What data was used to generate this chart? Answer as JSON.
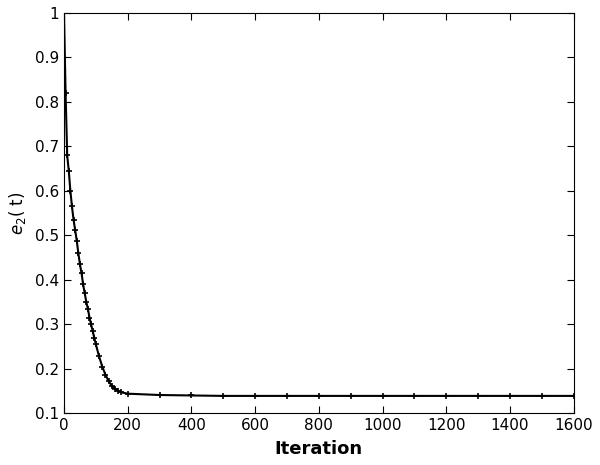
{
  "iterations": [
    0,
    5,
    10,
    15,
    20,
    25,
    30,
    35,
    40,
    45,
    50,
    55,
    60,
    65,
    70,
    75,
    80,
    85,
    90,
    95,
    100,
    110,
    120,
    130,
    140,
    150,
    160,
    170,
    180,
    200,
    300,
    400,
    500,
    600,
    700,
    800,
    900,
    1000,
    1100,
    1200,
    1300,
    1400,
    1500,
    1600
  ],
  "e2_values": [
    1.0,
    0.82,
    0.68,
    0.645,
    0.6,
    0.565,
    0.535,
    0.512,
    0.488,
    0.46,
    0.435,
    0.415,
    0.39,
    0.37,
    0.35,
    0.335,
    0.315,
    0.3,
    0.285,
    0.27,
    0.255,
    0.228,
    0.205,
    0.187,
    0.172,
    0.162,
    0.155,
    0.15,
    0.147,
    0.144,
    0.141,
    0.14,
    0.139,
    0.139,
    0.139,
    0.139,
    0.139,
    0.139,
    0.139,
    0.139,
    0.139,
    0.139,
    0.139,
    0.139
  ],
  "xlabel": "Iteration",
  "ylabel": "e_2( t)",
  "xlim": [
    0,
    1600
  ],
  "ylim": [
    0.1,
    1.0
  ],
  "xticks": [
    0,
    200,
    400,
    600,
    800,
    1000,
    1200,
    1400,
    1600
  ],
  "yticks": [
    0.1,
    0.2,
    0.3,
    0.4,
    0.5,
    0.6,
    0.7,
    0.8,
    0.9,
    1.0
  ],
  "line_color": "#000000",
  "marker": "+",
  "marker_size": 5,
  "marker_linewidth": 1.2,
  "line_width": 1.5,
  "bg_color": "#ffffff",
  "xlabel_fontsize": 13,
  "ylabel_fontsize": 12,
  "tick_fontsize": 11
}
